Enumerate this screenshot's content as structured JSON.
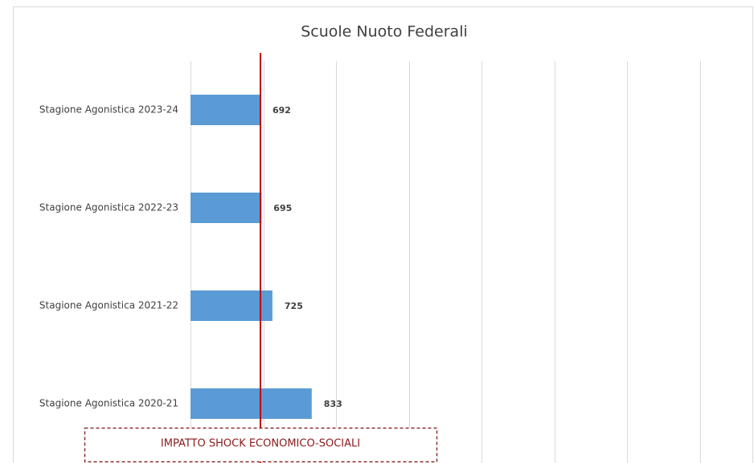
{
  "chart_data": {
    "type": "bar",
    "orientation": "horizontal",
    "title": "Scuole Nuoto Federali",
    "categories": [
      "Stagione Agonistica 2023-24",
      "Stagione Agonistica 2022-23",
      "Stagione Agonistica 2021-22",
      "Stagione Agonistica 2020-21"
    ],
    "values": [
      692,
      695,
      725,
      833
    ],
    "color": "#5b9bd5",
    "xlim": [
      500,
      1900
    ],
    "xticks": [
      500,
      700,
      900,
      1100,
      1300,
      1500,
      1700,
      1900
    ],
    "grid": true,
    "annotation": "IMPATTO SHOCK ECONOMICO-SOCIALI"
  }
}
